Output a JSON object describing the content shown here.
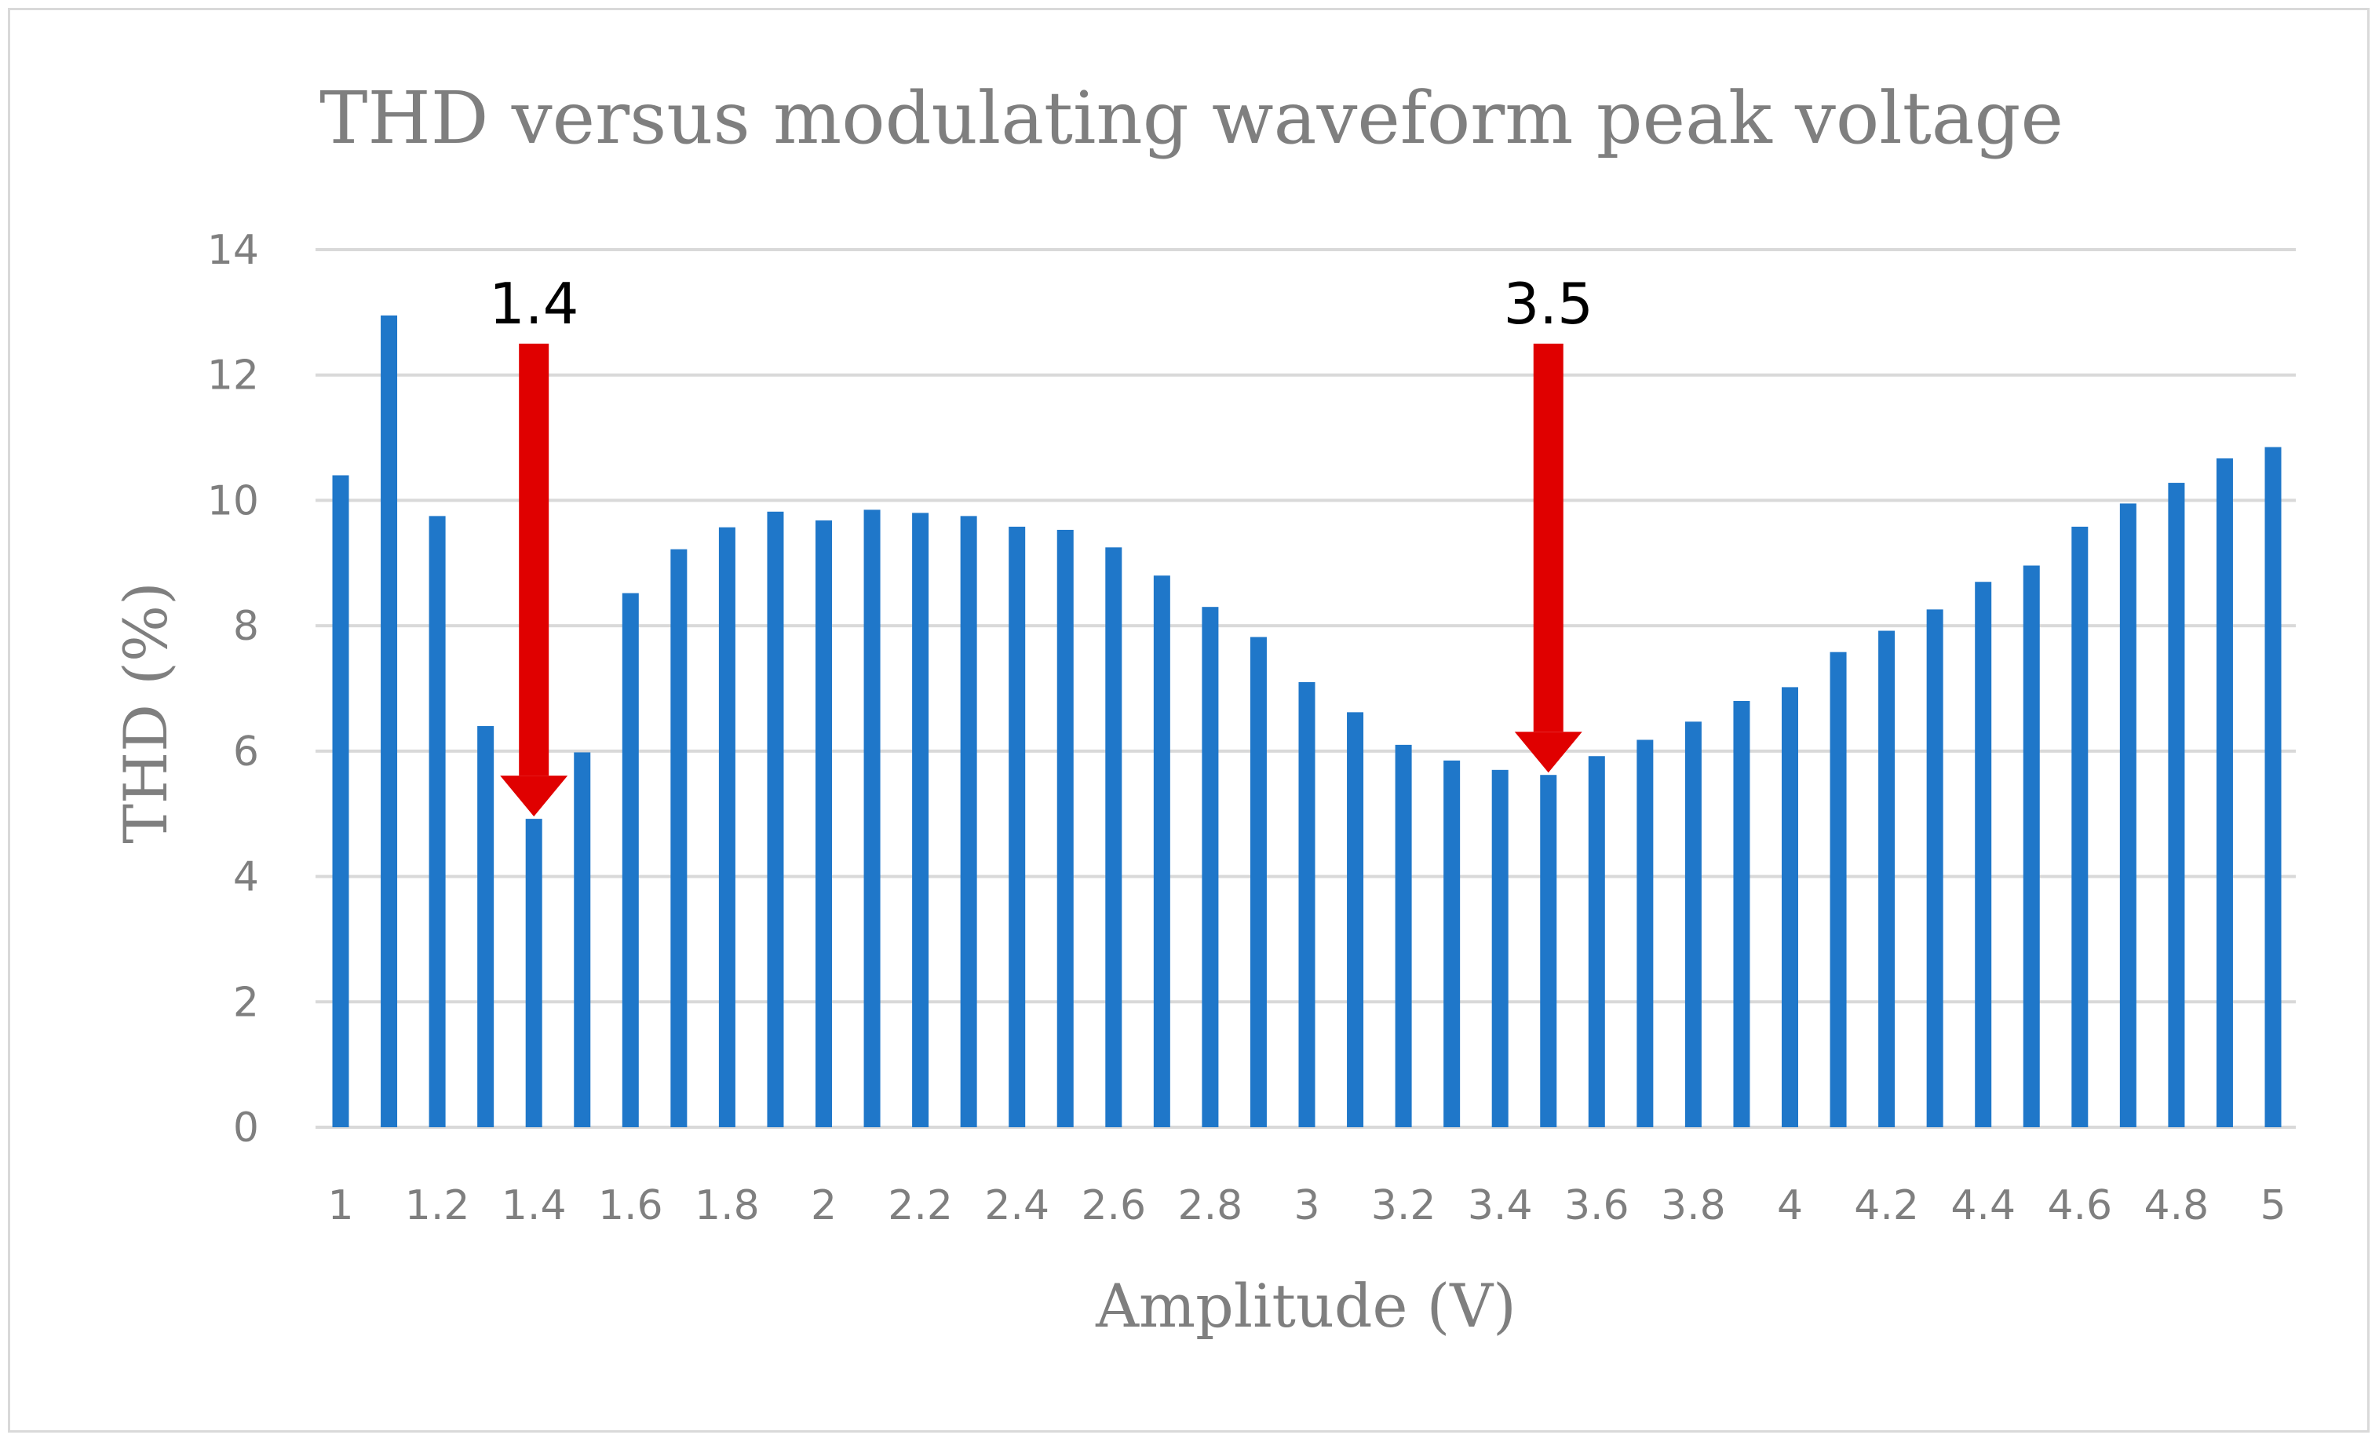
{
  "chart_data": {
    "type": "bar",
    "title": "THD versus modulating waveform peak voltage",
    "xlabel": "Amplitude (V)",
    "ylabel": "THD (%)",
    "ylim": [
      0,
      14
    ],
    "yticks": [
      "0",
      "2",
      "4",
      "6",
      "8",
      "10",
      "12",
      "14"
    ],
    "grid": true,
    "categories": [
      "1",
      "1.1",
      "1.2",
      "1.3",
      "1.4",
      "1.5",
      "1.6",
      "1.7",
      "1.8",
      "1.9",
      "2",
      "2.1",
      "2.2",
      "2.3",
      "2.4",
      "2.5",
      "2.6",
      "2.7",
      "2.8",
      "2.9",
      "3",
      "3.1",
      "3.2",
      "3.3",
      "3.4",
      "3.5",
      "3.6",
      "3.7",
      "3.8",
      "3.9",
      "4",
      "4.1",
      "4.2",
      "4.3",
      "4.4",
      "4.5",
      "4.6",
      "4.7",
      "4.8",
      "4.9",
      "5"
    ],
    "tick_labels": [
      "1",
      "",
      "1.2",
      "",
      "1.4",
      "",
      "1.6",
      "",
      "1.8",
      "",
      "2",
      "",
      "2.2",
      "",
      "2.4",
      "",
      "2.6",
      "",
      "2.8",
      "",
      "3",
      "",
      "3.2",
      "",
      "3.4",
      "",
      "3.6",
      "",
      "3.8",
      "",
      "4",
      "",
      "4.2",
      "",
      "4.4",
      "",
      "4.6",
      "",
      "4.8",
      "",
      "5"
    ],
    "series": [
      {
        "name": "THD",
        "color": "#1f77c9",
        "values": [
          10.4,
          12.95,
          9.75,
          6.4,
          4.92,
          5.98,
          8.52,
          9.22,
          9.57,
          9.82,
          9.68,
          9.85,
          9.8,
          9.75,
          9.58,
          9.53,
          9.25,
          8.8,
          8.3,
          7.82,
          7.1,
          6.62,
          6.1,
          5.85,
          5.7,
          5.62,
          5.92,
          6.18,
          6.47,
          6.8,
          7.02,
          7.58,
          7.92,
          8.26,
          8.7,
          8.96,
          9.58,
          9.95,
          10.28,
          10.67,
          10.85
        ]
      }
    ],
    "annotations": [
      {
        "text": "1.4",
        "x": "1.4",
        "arrow_from": 12.5,
        "arrow_to": 4.92,
        "color": "#e00000"
      },
      {
        "text": "3.5",
        "x": "3.5",
        "arrow_from": 12.5,
        "arrow_to": 5.62,
        "color": "#e00000"
      }
    ]
  }
}
